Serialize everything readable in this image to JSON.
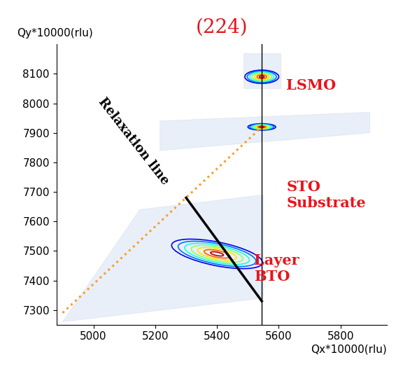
{
  "chart_data": {
    "type": "reciprocal_space_map",
    "title": "(224)",
    "x_label": "Qx*10000(rlu)",
    "y_label": "Qy*10000(rlu)",
    "xlim": [
      4880,
      5950
    ],
    "ylim": [
      7250,
      8200
    ],
    "xticks": [
      5000,
      5200,
      5400,
      5600,
      5800
    ],
    "yticks": [
      7300,
      7400,
      7500,
      7600,
      7700,
      7800,
      7900,
      8000,
      8100
    ],
    "peaks": [
      {
        "name": "LSMO",
        "qx": 5545,
        "qy": 8090
      },
      {
        "name": "STO\nSubstrate",
        "qx": 5545,
        "qy": 7920
      },
      {
        "name": "Layer\nBTO",
        "qx": 5400,
        "qy": 7490
      }
    ],
    "relaxation_line": {
      "label": "Relaxation line",
      "x": [
        5300,
        5545
      ],
      "y": [
        7680,
        7330
      ],
      "color": "#000000"
    },
    "origin_line": {
      "x": [
        4900,
        5545
      ],
      "y": [
        7290,
        7920
      ],
      "color": "#f5a030",
      "line_style": "dotted"
    },
    "reference_qx": 5545,
    "color": "#e8141c"
  }
}
